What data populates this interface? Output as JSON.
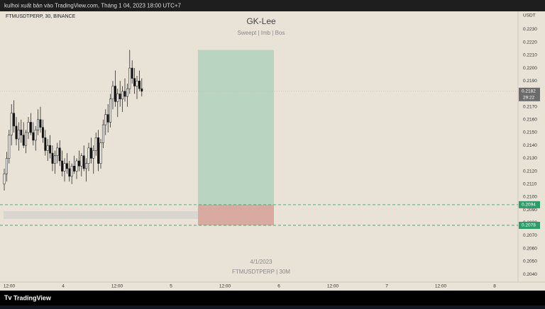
{
  "header": "kulhoi xuất bản vào TradingView.com, Tháng 1 04, 2023 18:00 UTC+7",
  "footer": "TradingView",
  "chart_data": {
    "type": "candlestick",
    "symbol": "FTMUSDTPERP, 30, BINANCE",
    "title": "GK-Lee",
    "subtitle": "Sweept  |  Imb  |  Bos",
    "annotation_date": "4/1/2023",
    "annotation_symbol": "FTMUSDTPERP | 30M",
    "currency": "USDT",
    "ylim": [
      0.2034,
      0.2244
    ],
    "yticks": [
      {
        "value": 0.204,
        "label": "0.2040"
      },
      {
        "value": 0.205,
        "label": "0.2050"
      },
      {
        "value": 0.206,
        "label": "0.2060"
      },
      {
        "value": 0.207,
        "label": "0.2070"
      },
      {
        "value": 0.208,
        "label": "0.2080"
      },
      {
        "value": 0.209,
        "label": "0.2090"
      },
      {
        "value": 0.21,
        "label": "0.2100"
      },
      {
        "value": 0.211,
        "label": "0.2110"
      },
      {
        "value": 0.212,
        "label": "0.2120"
      },
      {
        "value": 0.213,
        "label": "0.2130"
      },
      {
        "value": 0.214,
        "label": "0.2140"
      },
      {
        "value": 0.215,
        "label": "0.2150"
      },
      {
        "value": 0.216,
        "label": "0.2160"
      },
      {
        "value": 0.217,
        "label": "0.2170"
      },
      {
        "value": 0.218,
        "label": "0.2180"
      },
      {
        "value": 0.219,
        "label": "0.2190"
      },
      {
        "value": 0.22,
        "label": "0.2200"
      },
      {
        "value": 0.221,
        "label": "0.2210"
      },
      {
        "value": 0.222,
        "label": "0.2220"
      },
      {
        "value": 0.223,
        "label": "0.2230"
      }
    ],
    "xtick_labels": [
      "12:00",
      "4",
      "12:00",
      "5",
      "12:00",
      "6",
      "12:00",
      "7",
      "12:00",
      "8"
    ],
    "open": [
      0.211,
      0.2118,
      0.213,
      0.2148,
      0.2165,
      0.2155,
      0.2145,
      0.2152,
      0.2148,
      0.214,
      0.215,
      0.2158,
      0.215,
      0.2144,
      0.2152,
      0.216,
      0.2154,
      0.2146,
      0.2136,
      0.214,
      0.2134,
      0.2126,
      0.2132,
      0.2138,
      0.2128,
      0.212,
      0.2126,
      0.2122,
      0.2116,
      0.2124,
      0.212,
      0.2128,
      0.2124,
      0.2132,
      0.2122,
      0.2126,
      0.2138,
      0.213,
      0.2136,
      0.2146,
      0.2126,
      0.2142,
      0.2156,
      0.2164,
      0.2158,
      0.2176,
      0.2186,
      0.2174,
      0.218,
      0.2176,
      0.2182,
      0.2178,
      0.2184,
      0.22,
      0.2192,
      0.2186,
      0.219,
      0.2184
    ],
    "high": [
      0.2122,
      0.2135,
      0.2152,
      0.2172,
      0.2175,
      0.2162,
      0.2158,
      0.216,
      0.2158,
      0.2152,
      0.2162,
      0.2165,
      0.2158,
      0.2155,
      0.2168,
      0.217,
      0.216,
      0.2152,
      0.2145,
      0.2148,
      0.214,
      0.2136,
      0.2142,
      0.2144,
      0.2136,
      0.213,
      0.2134,
      0.2128,
      0.2126,
      0.2132,
      0.213,
      0.2136,
      0.2134,
      0.214,
      0.213,
      0.2142,
      0.2146,
      0.214,
      0.215,
      0.2152,
      0.2145,
      0.216,
      0.2168,
      0.2172,
      0.218,
      0.219,
      0.2198,
      0.2184,
      0.219,
      0.2186,
      0.2192,
      0.2188,
      0.2214,
      0.2206,
      0.22,
      0.2194,
      0.2198,
      0.2192
    ],
    "low": [
      0.2105,
      0.2112,
      0.2126,
      0.214,
      0.215,
      0.214,
      0.2136,
      0.2142,
      0.2138,
      0.2134,
      0.2145,
      0.2148,
      0.214,
      0.2136,
      0.2148,
      0.215,
      0.2142,
      0.2132,
      0.2128,
      0.213,
      0.212,
      0.2118,
      0.2126,
      0.2124,
      0.2116,
      0.2112,
      0.2118,
      0.2112,
      0.211,
      0.2118,
      0.2114,
      0.212,
      0.2116,
      0.212,
      0.2112,
      0.212,
      0.2126,
      0.2118,
      0.2132,
      0.212,
      0.2122,
      0.2138,
      0.2148,
      0.215,
      0.2154,
      0.2168,
      0.217,
      0.2162,
      0.217,
      0.2166,
      0.2174,
      0.217,
      0.218,
      0.2188,
      0.218,
      0.2176,
      0.2182,
      0.2178
    ],
    "close": [
      0.2118,
      0.213,
      0.2148,
      0.2165,
      0.2155,
      0.2145,
      0.2152,
      0.2148,
      0.214,
      0.215,
      0.2158,
      0.215,
      0.2144,
      0.2152,
      0.216,
      0.2154,
      0.2146,
      0.2136,
      0.214,
      0.2134,
      0.2126,
      0.2132,
      0.2138,
      0.2128,
      0.212,
      0.2126,
      0.2122,
      0.2116,
      0.2124,
      0.212,
      0.2128,
      0.2124,
      0.2132,
      0.2122,
      0.2126,
      0.2138,
      0.213,
      0.2136,
      0.2146,
      0.2126,
      0.2142,
      0.2156,
      0.2164,
      0.2158,
      0.2176,
      0.2186,
      0.2174,
      0.218,
      0.2176,
      0.2182,
      0.2178,
      0.2184,
      0.22,
      0.2192,
      0.2186,
      0.219,
      0.2184,
      0.2182
    ],
    "current_price": {
      "value": 0.2182,
      "label": "0.2182"
    },
    "countdown": "29:22",
    "position": {
      "target": 0.2214,
      "entry": {
        "value": 0.2094,
        "label": "0.2094"
      },
      "stop": {
        "value": 0.2078,
        "label": "0.2078"
      }
    },
    "zone": [
      0.2083,
      0.2089
    ]
  }
}
